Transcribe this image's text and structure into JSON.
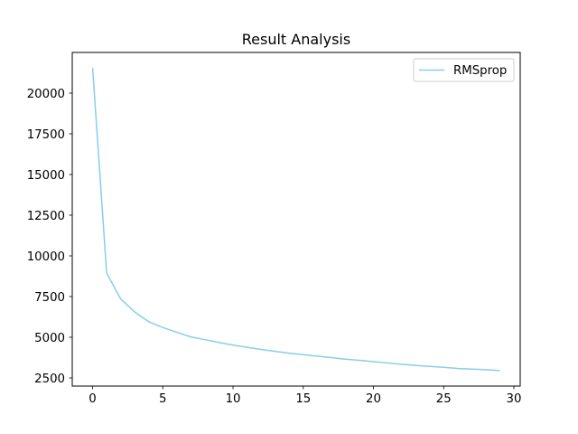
{
  "chart_data": {
    "type": "line",
    "title": "Result Analysis",
    "xlabel": "",
    "ylabel": "",
    "xlim": [
      -1.45,
      30.45
    ],
    "ylim": [
      2000,
      22500
    ],
    "xticks": [
      0,
      5,
      10,
      15,
      20,
      25,
      30
    ],
    "yticks": [
      2500,
      5000,
      7500,
      10000,
      12500,
      15000,
      17500,
      20000
    ],
    "grid": false,
    "legend_position": "top-right",
    "series": [
      {
        "name": "RMSprop",
        "color": "#87ceeb",
        "x": [
          0,
          1,
          2,
          3,
          4,
          5,
          6,
          7,
          8,
          9,
          10,
          11,
          12,
          13,
          14,
          15,
          16,
          17,
          18,
          19,
          20,
          21,
          22,
          23,
          24,
          25,
          26,
          27,
          28,
          29
        ],
        "values": [
          21550,
          8950,
          7350,
          6550,
          5950,
          5600,
          5300,
          5020,
          4850,
          4680,
          4520,
          4380,
          4250,
          4130,
          4020,
          3930,
          3840,
          3750,
          3650,
          3580,
          3500,
          3420,
          3340,
          3270,
          3210,
          3150,
          3080,
          3040,
          3010,
          2950
        ]
      }
    ]
  }
}
